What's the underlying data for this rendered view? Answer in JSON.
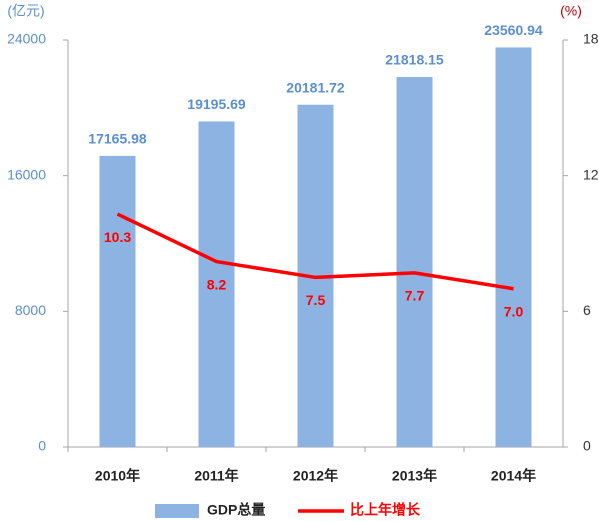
{
  "chart_data": {
    "type": "bar",
    "y_label": "(亿元)",
    "y2_label": "(%)",
    "categories": [
      "2010年",
      "2011年",
      "2012年",
      "2013年",
      "2014年"
    ],
    "series": [
      {
        "name": "GDP总量",
        "color": "#8db3e2",
        "label_color": "#5b8fcf",
        "type": "bar",
        "values": [
          17165.98,
          19195.69,
          20181.72,
          21818.15,
          23560.94
        ]
      },
      {
        "name": "比上年增长",
        "color": "#ff0000",
        "type": "line",
        "axis": "y2",
        "values": [
          10.3,
          8.2,
          7.5,
          7.7,
          7.0
        ],
        "value_labels": [
          "10.3",
          "8.2",
          "7.5",
          "7.7",
          "7.0"
        ]
      }
    ],
    "ylim": [
      0,
      24000
    ],
    "yticks": [
      0,
      8000,
      16000,
      24000
    ],
    "y2lim": [
      0,
      18
    ],
    "y2ticks": [
      0,
      6,
      12,
      18
    ],
    "grid": false
  }
}
